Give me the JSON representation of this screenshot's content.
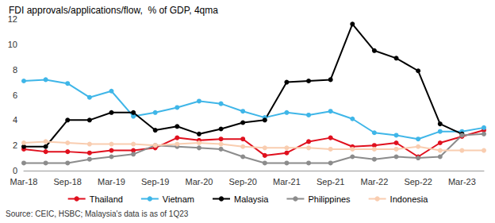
{
  "chart_data": {
    "type": "line",
    "title": "FDI approvals/applications/flow,  % of GDP, 4qma",
    "footnote": "Source: CEIC, HSBC; Malaysia's data is as of 1Q23",
    "categories": [
      "Mar-18",
      null,
      "Sep-18",
      null,
      "Mar-19",
      null,
      "Sep-19",
      null,
      "Mar-20",
      null,
      "Sep-20",
      null,
      "Mar-21",
      null,
      "Sep-21",
      null,
      "Mar-22",
      null,
      "Sep-22",
      null,
      "Mar-23",
      null
    ],
    "series": [
      {
        "name": "Thailand",
        "color": "#e0101e",
        "marker": "circle",
        "line_style": "solid",
        "values": [
          1.7,
          1.5,
          1.5,
          1.4,
          1.6,
          1.6,
          1.8,
          2.6,
          2.4,
          2.5,
          2.5,
          1.2,
          1.4,
          2.3,
          2.6,
          1.9,
          2.0,
          2.2,
          1.1,
          2.2,
          2.7,
          3.2
        ]
      },
      {
        "name": "Vietnam",
        "color": "#3fb6e8",
        "marker": "circle",
        "line_style": "solid",
        "values": [
          7.1,
          7.2,
          6.9,
          5.8,
          6.3,
          4.3,
          4.6,
          5.0,
          5.5,
          5.3,
          4.7,
          4.2,
          4.6,
          4.4,
          4.7,
          4.1,
          3.0,
          2.8,
          2.5,
          3.1,
          3.1,
          3.4
        ]
      },
      {
        "name": "Malaysia",
        "color": "#000000",
        "marker": "circle",
        "line_style": "solid",
        "values": [
          1.9,
          1.9,
          4.0,
          4.0,
          4.6,
          4.6,
          3.2,
          3.5,
          2.9,
          3.3,
          3.8,
          4.0,
          7.0,
          7.1,
          7.2,
          11.6,
          9.5,
          8.9,
          7.9,
          3.7,
          2.9,
          null
        ]
      },
      {
        "name": "Philippines",
        "color": "#8c8c8c",
        "marker": "circle",
        "line_style": "solid",
        "values": [
          0.6,
          0.6,
          0.6,
          0.9,
          1.1,
          1.3,
          2.0,
          1.9,
          1.8,
          1.7,
          1.1,
          0.6,
          0.6,
          0.6,
          0.6,
          1.1,
          0.9,
          1.1,
          1.0,
          1.1,
          2.8,
          2.9
        ]
      },
      {
        "name": "Indonesia",
        "color": "#f9cdb0",
        "marker": "circle",
        "line_style": "solid",
        "values": [
          2.2,
          2.3,
          2.2,
          2.1,
          2.1,
          2.1,
          2.0,
          2.1,
          2.2,
          2.1,
          1.9,
          1.8,
          1.8,
          1.8,
          1.7,
          1.7,
          1.7,
          1.7,
          1.9,
          1.6,
          1.6,
          1.6
        ]
      }
    ],
    "ylim": [
      0,
      12
    ],
    "yticks": [
      0,
      2,
      4,
      6,
      8,
      10,
      12
    ],
    "grid": false,
    "legend": "bottom"
  }
}
